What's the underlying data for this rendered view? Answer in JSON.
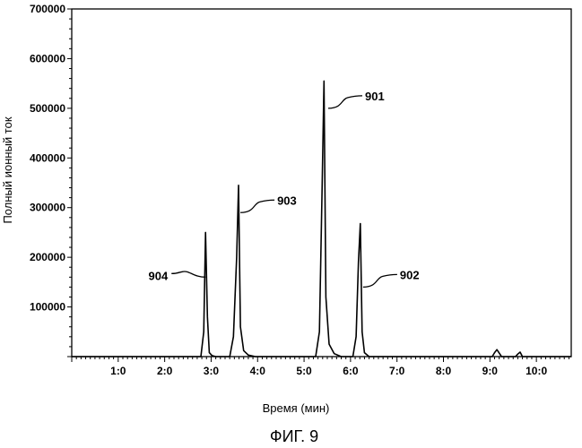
{
  "chart_data": {
    "type": "line",
    "title": "",
    "xlabel": "Время (мин)",
    "ylabel": "Полный ионный ток",
    "caption": "ФИГ. 9",
    "xlim": [
      0.0,
      10.75
    ],
    "ylim": [
      0,
      700000
    ],
    "y_ticks": [
      {
        "value": 100000,
        "label": "100000"
      },
      {
        "value": 200000,
        "label": "200000"
      },
      {
        "value": 300000,
        "label": "300000"
      },
      {
        "value": 400000,
        "label": "400000"
      },
      {
        "value": 500000,
        "label": "500000"
      },
      {
        "value": 600000,
        "label": "600000"
      },
      {
        "value": 700000,
        "label": "700000"
      }
    ],
    "x_ticks": [
      {
        "value": 1,
        "label": "1:0"
      },
      {
        "value": 2,
        "label": "2:0"
      },
      {
        "value": 3,
        "label": "3:0"
      },
      {
        "value": 4,
        "label": "4:0"
      },
      {
        "value": 5,
        "label": "5:0"
      },
      {
        "value": 6,
        "label": "6:0"
      },
      {
        "value": 7,
        "label": "7:0"
      },
      {
        "value": 8,
        "label": "8:0"
      },
      {
        "value": 9,
        "label": "9:0"
      },
      {
        "value": 10,
        "label": "10:0"
      }
    ],
    "grid": false,
    "series": [
      {
        "x": [
          0.0,
          2.78,
          2.84,
          2.88,
          2.92,
          2.96,
          3.02,
          3.1,
          3.4,
          3.48,
          3.55,
          3.59,
          3.63,
          3.7,
          3.8,
          3.95,
          5.25,
          5.33,
          5.39,
          5.43,
          5.47,
          5.54,
          5.65,
          5.8,
          6.05,
          6.12,
          6.17,
          6.21,
          6.25,
          6.3,
          6.4,
          9.05,
          9.1,
          9.15,
          9.2,
          9.25,
          9.55,
          9.6,
          9.65,
          9.7,
          10.75
        ],
        "y": [
          0,
          0,
          50000,
          250000,
          80000,
          8000,
          2000,
          0,
          0,
          40000,
          200000,
          345000,
          60000,
          12000,
          3000,
          0,
          0,
          50000,
          350000,
          555000,
          120000,
          25000,
          6000,
          0,
          0,
          40000,
          190000,
          268000,
          50000,
          8000,
          0,
          0,
          8000,
          14000,
          7000,
          0,
          0,
          5000,
          9000,
          0,
          0
        ]
      }
    ],
    "annotations": [
      {
        "label": "901",
        "x": 5.52,
        "y": 500000
      },
      {
        "label": "902",
        "x": 6.27,
        "y": 140000
      },
      {
        "label": "903",
        "x": 3.63,
        "y": 290000
      },
      {
        "label": "904",
        "x": 2.88,
        "y": 160000
      }
    ]
  }
}
